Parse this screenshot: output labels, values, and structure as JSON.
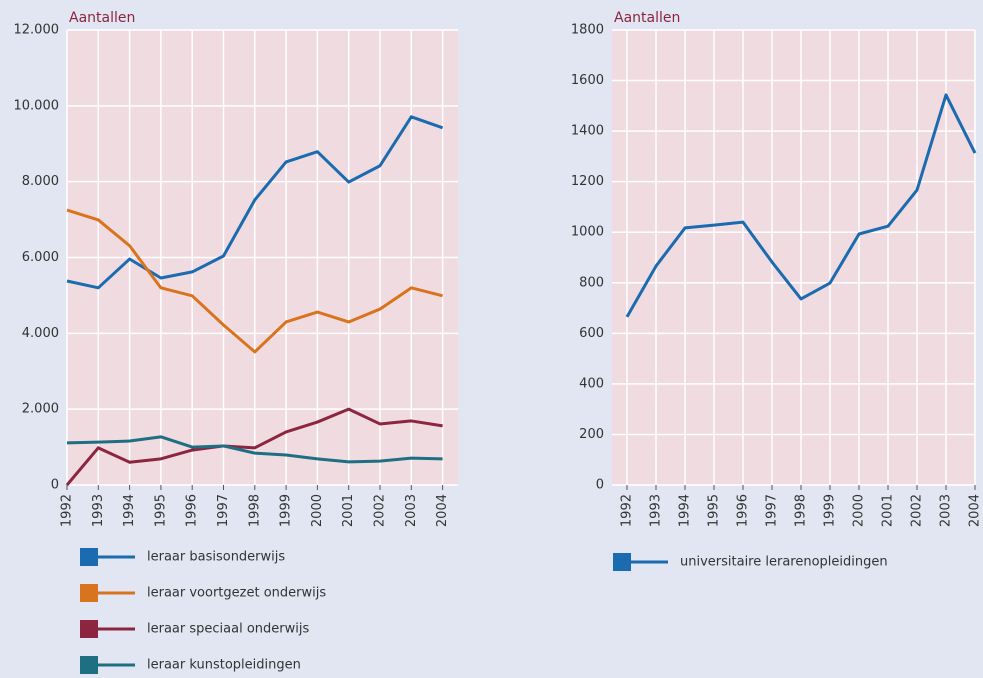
{
  "chart_data": [
    {
      "type": "line",
      "title": "Aantallen",
      "categories": [
        "1992",
        "1993",
        "1994",
        "1995",
        "1996",
        "1997",
        "1998",
        "1999",
        "2000",
        "2001",
        "2002",
        "2003",
        "2004"
      ],
      "series": [
        {
          "name": "leraar basisonderwijs",
          "color": "#1a6bb0",
          "values": [
            5380,
            5200,
            5960,
            5460,
            5620,
            6040,
            7520,
            8520,
            8790,
            7990,
            8420,
            9710,
            9420
          ]
        },
        {
          "name": "leraar voortgezet onderwijs",
          "color": "#d9741e",
          "values": [
            7250,
            6990,
            6310,
            5200,
            4990,
            4220,
            3510,
            4300,
            4560,
            4300,
            4640,
            5200,
            4990
          ]
        },
        {
          "name": "leraar speciaal onderwijs",
          "color": "#8c2640",
          "values": [
            0,
            980,
            600,
            690,
            920,
            1030,
            980,
            1400,
            1660,
            2000,
            1610,
            1690,
            1560
          ]
        },
        {
          "name": "leraar kunstopleidingen",
          "color": "#1f6f83",
          "values": [
            1110,
            1130,
            1160,
            1270,
            1000,
            1030,
            840,
            790,
            690,
            610,
            630,
            710,
            690
          ]
        }
      ],
      "ylim": [
        0,
        12000
      ],
      "yticks": [
        0,
        {
          "value": 2000,
          "label": "2.000"
        },
        {
          "value": 4000,
          "label": "4.000"
        },
        {
          "value": 6000,
          "label": "6.000"
        },
        {
          "value": 8000,
          "label": "8.000"
        },
        {
          "value": 10000,
          "label": "10.000"
        },
        {
          "value": 12000,
          "label": "12.000"
        }
      ],
      "grid": true
    },
    {
      "type": "line",
      "title": "Aantallen",
      "categories": [
        "1992",
        "1993",
        "1994",
        "1995",
        "1996",
        "1997",
        "1998",
        "1999",
        "2000",
        "2001",
        "2002",
        "2003",
        "2004"
      ],
      "series": [
        {
          "name": "universitaire lerarenopleidingen",
          "color": "#1a6bb0",
          "values": [
            665,
            866,
            1017,
            1028,
            1040,
            882,
            736,
            799,
            993,
            1024,
            1167,
            1543,
            1313
          ]
        }
      ],
      "ylim": [
        0,
        1800
      ],
      "yticks": [
        0,
        200,
        400,
        600,
        800,
        1000,
        1200,
        1400,
        1600,
        1800
      ],
      "grid": true
    }
  ]
}
